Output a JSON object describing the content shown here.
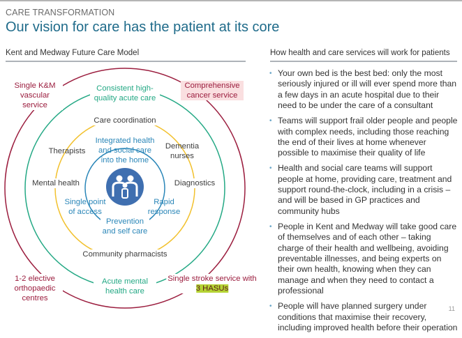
{
  "header": {
    "kicker": "CARE TRANSFORMATION",
    "title": "Our vision for care has the patient at its core"
  },
  "left": {
    "heading": "Kent and Medway Future Care Model",
    "colors": {
      "outer": "#9b1d3e",
      "acute": "#23a884",
      "community": "#f2c12e",
      "home": "#2a86b8",
      "icon": "#3f6fb0"
    },
    "outer_labels": {
      "tl": "Single K&M vascular service",
      "tr": "Comprehensive cancer service",
      "bl": "1-2 elective orthopaedic centres",
      "br_1": "Single stroke service with",
      "br_2": "3 HASUs"
    },
    "acute_labels": {
      "top": "Consistent high-quality acute care",
      "bottom": "Acute mental health care"
    },
    "community_labels": {
      "top": "Care coordination",
      "tl": "Therapists",
      "tr": "Dementia nurses",
      "left": "Mental health",
      "right": "Diagnostics",
      "bottom": "Community pharmacists"
    },
    "home_labels": {
      "top": "Integrated health and social care into the home",
      "left": "Single point of access",
      "right": "Rapid response",
      "bottom": "Prevention and self care"
    },
    "center_icon": "family-icon"
  },
  "right": {
    "heading": "How health and care services will work for patients",
    "bullets": [
      "Your own bed is the best bed: only the most seriously injured or ill will ever spend more than a few days in an acute hospital due to their need to be under the care of a consultant",
      "Teams will support frail older people and people with complex needs, including those reaching the end of their lives at home whenever possible to maximise their quality of life",
      "Health and social care teams will support people at home, providing care, treatment and support round-the-clock, including in a crisis – and will be based in GP practices and community hubs",
      "People in Kent and Medway will take good care of themselves and of each other – taking charge of their health and wellbeing, avoiding preventable illnesses, and being experts on their own health, knowing when they can manage and when they need to contact a professional",
      "People will have planned surgery under conditions that maximise their recovery, including improved health before their operation"
    ]
  },
  "page_number": "11"
}
